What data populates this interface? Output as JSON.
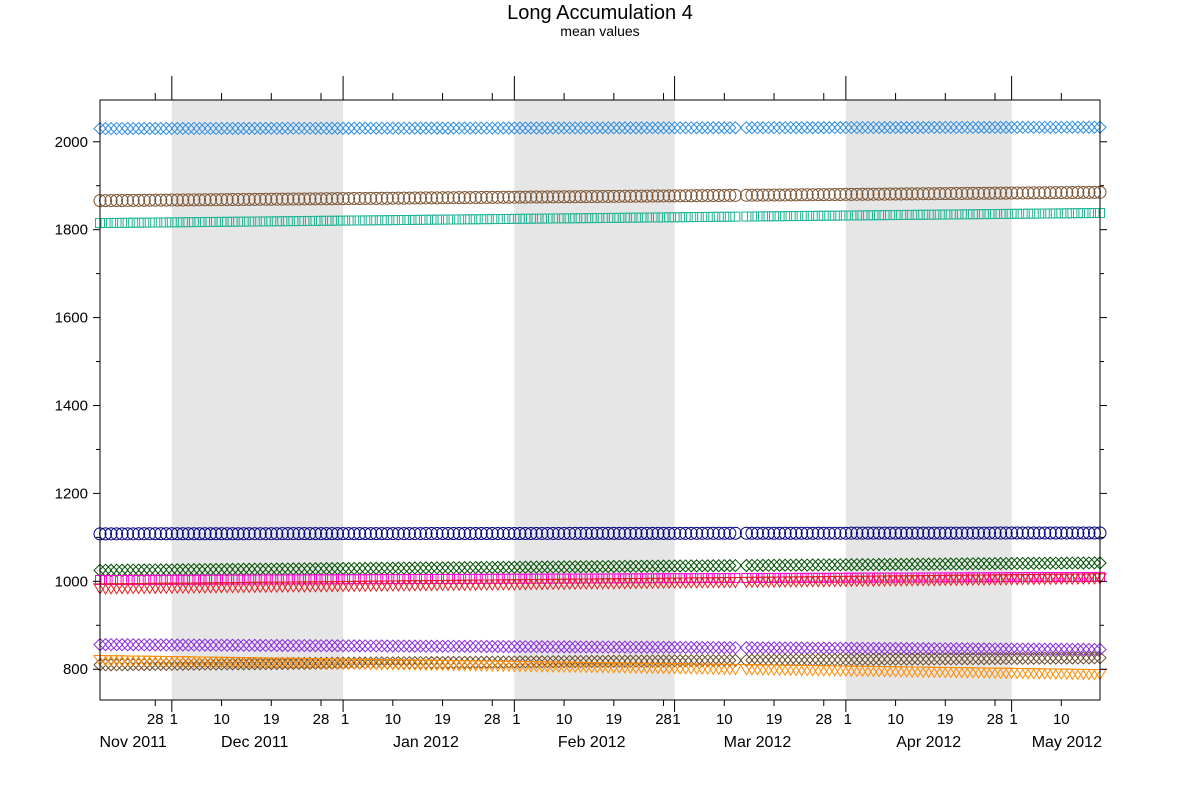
{
  "chart_data": {
    "type": "scatter",
    "title": "Long Accumulation 4",
    "subtitle": "mean values",
    "xlabel": "",
    "ylabel": "",
    "x_range": [
      "2011-11-18",
      "2012-05-17"
    ],
    "ylim": [
      730,
      2095
    ],
    "y_ticks": [
      800,
      1000,
      1200,
      1400,
      1600,
      1800,
      2000
    ],
    "x_day_ticks": [
      {
        "date": "2011-11-28",
        "label": "28"
      },
      {
        "date": "2011-12-01",
        "label": "1"
      },
      {
        "date": "2011-12-10",
        "label": "10"
      },
      {
        "date": "2011-12-19",
        "label": "19"
      },
      {
        "date": "2011-12-28",
        "label": "28"
      },
      {
        "date": "2012-01-01",
        "label": "1"
      },
      {
        "date": "2012-01-10",
        "label": "10"
      },
      {
        "date": "2012-01-19",
        "label": "19"
      },
      {
        "date": "2012-01-28",
        "label": "28"
      },
      {
        "date": "2012-02-01",
        "label": "1"
      },
      {
        "date": "2012-02-10",
        "label": "10"
      },
      {
        "date": "2012-02-19",
        "label": "19"
      },
      {
        "date": "2012-02-28",
        "label": "28"
      },
      {
        "date": "2012-03-01",
        "label": "1"
      },
      {
        "date": "2012-03-10",
        "label": "10"
      },
      {
        "date": "2012-03-19",
        "label": "19"
      },
      {
        "date": "2012-03-28",
        "label": "28"
      },
      {
        "date": "2012-04-01",
        "label": "1"
      },
      {
        "date": "2012-04-10",
        "label": "10"
      },
      {
        "date": "2012-04-19",
        "label": "19"
      },
      {
        "date": "2012-04-28",
        "label": "28"
      },
      {
        "date": "2012-05-01",
        "label": "1"
      },
      {
        "date": "2012-05-10",
        "label": "10"
      }
    ],
    "x_month_labels": [
      {
        "date": "2011-11-24",
        "label": "Nov 2011"
      },
      {
        "date": "2011-12-16",
        "label": "Dec 2011"
      },
      {
        "date": "2012-01-16",
        "label": "Jan 2012"
      },
      {
        "date": "2012-02-15",
        "label": "Feb 2012"
      },
      {
        "date": "2012-03-16",
        "label": "Mar 2012"
      },
      {
        "date": "2012-04-16",
        "label": "Apr 2012"
      },
      {
        "date": "2012-05-11",
        "label": "May 2012"
      }
    ],
    "shaded_periods": [
      [
        "2011-12-01",
        "2012-01-01"
      ],
      [
        "2012-02-01",
        "2012-03-01"
      ],
      [
        "2012-04-01",
        "2012-05-01"
      ]
    ],
    "grid": false,
    "series": [
      {
        "color": "#2e8fe0",
        "marker": "diamond",
        "start": 2030,
        "end": 2033,
        "gap_date": "2012-03-13"
      },
      {
        "color": "#7a5230",
        "marker": "circle",
        "start": 1866,
        "end": 1885,
        "gap_date": "2012-03-13"
      },
      {
        "color": "#1db394",
        "marker": "square",
        "start": 1815,
        "end": 1838,
        "gap_date": "2012-03-13"
      },
      {
        "color": "#000080",
        "marker": "circle",
        "start": 1108,
        "end": 1110,
        "gap_date": "2012-03-13"
      },
      {
        "color": "#005000",
        "marker": "diamond",
        "start": 1025,
        "end": 1042,
        "gap_date": "2012-03-13"
      },
      {
        "color": "#ff00d0",
        "marker": "square",
        "start": 1003,
        "end": 1010,
        "gap_date": "2012-03-13"
      },
      {
        "color": "#e02020",
        "marker": "triangle",
        "start": 985,
        "end": 1008,
        "gap_date": "2012-03-13"
      },
      {
        "color": "#8a2be2",
        "marker": "diamond",
        "start": 856,
        "end": 845,
        "gap_date": "2012-03-13"
      },
      {
        "color": "#6b4a2a",
        "marker": "diamond",
        "start": 810,
        "end": 826,
        "gap_date": "2012-03-13"
      },
      {
        "color": "#ff8c00",
        "marker": "triangle",
        "start": 822,
        "end": 790,
        "gap_date": "2012-03-13"
      }
    ]
  }
}
